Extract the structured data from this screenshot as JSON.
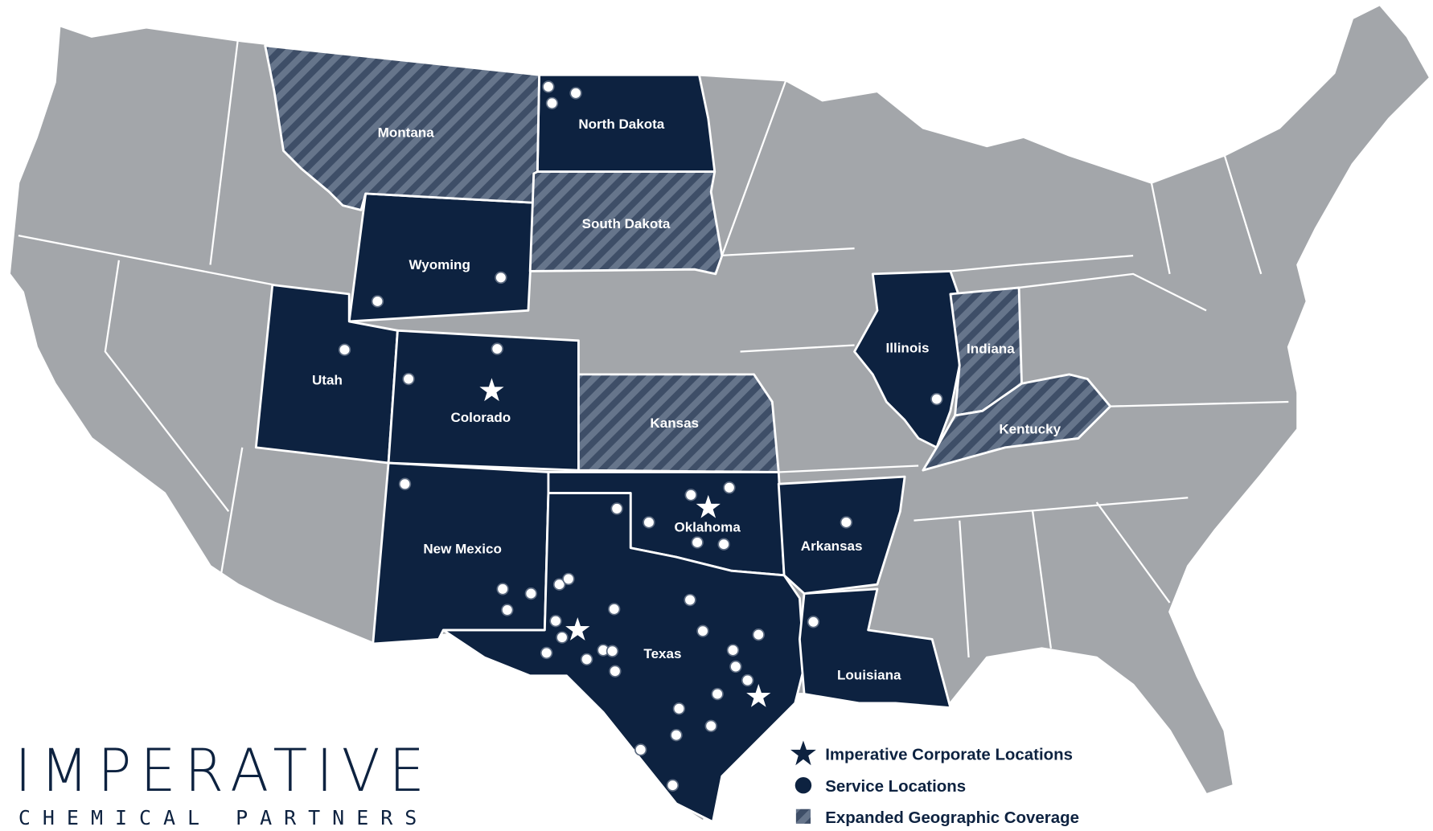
{
  "colors": {
    "service_state": "#0d2240",
    "other_state": "#a3a6aa",
    "hatch_dark": "#3e4e67",
    "hatch_light": "#66758b",
    "border": "#ffffff"
  },
  "states": {
    "north_dakota": "North Dakota",
    "south_dakota": "South Dakota",
    "montana": "Montana",
    "wyoming": "Wyoming",
    "utah": "Utah",
    "colorado": "Colorado",
    "kansas": "Kansas",
    "new_mexico": "New Mexico",
    "oklahoma": "Oklahoma",
    "texas": "Texas",
    "arkansas": "Arkansas",
    "louisiana": "Louisiana",
    "illinois": "Illinois",
    "indiana": "Indiana",
    "kentucky": "Kentucky"
  },
  "legend": {
    "corporate": "Imperative Corporate Locations",
    "service": "Service Locations",
    "expanded": "Expanded Geographic Coverage"
  },
  "logo": {
    "line1": "IMPERATIVE",
    "line2": "CHEMICAL PARTNERS"
  }
}
